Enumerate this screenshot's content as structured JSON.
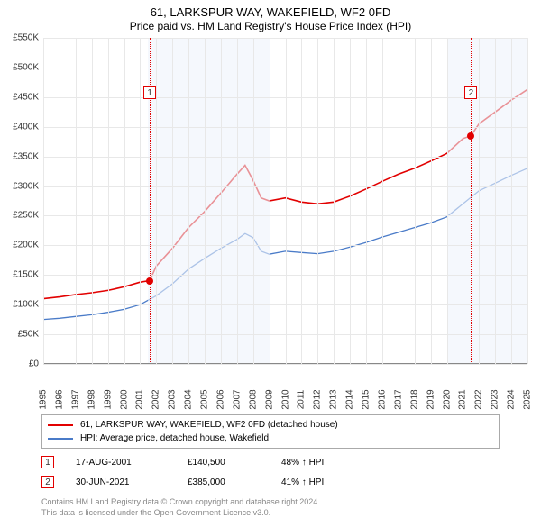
{
  "title": "61, LARKSPUR WAY, WAKEFIELD, WF2 0FD",
  "subtitle": "Price paid vs. HM Land Registry's House Price Index (HPI)",
  "chart": {
    "type": "line",
    "x_years": [
      1995,
      1996,
      1997,
      1998,
      1999,
      2000,
      2001,
      2002,
      2003,
      2004,
      2005,
      2006,
      2007,
      2008,
      2009,
      2010,
      2011,
      2012,
      2013,
      2014,
      2015,
      2016,
      2017,
      2018,
      2019,
      2020,
      2021,
      2022,
      2023,
      2024,
      2025
    ],
    "y_ticks": [
      0,
      50000,
      100000,
      150000,
      200000,
      250000,
      300000,
      350000,
      400000,
      450000,
      500000,
      550000
    ],
    "y_tick_labels": [
      "£0",
      "£50K",
      "£100K",
      "£150K",
      "£200K",
      "£250K",
      "£300K",
      "£350K",
      "£400K",
      "£450K",
      "£500K",
      "£550K"
    ],
    "ylim": [
      0,
      550000
    ],
    "xlim": [
      1995,
      2025
    ],
    "background_color": "#ffffff",
    "grid_color": "#e8e8e8",
    "shade_color": "#eef3fb",
    "shade_ranges": [
      [
        2001.5,
        2009.0
      ],
      [
        2020.0,
        2025.0
      ]
    ],
    "series": [
      {
        "name": "property",
        "label": "61, LARKSPUR WAY, WAKEFIELD, WF2 0FD (detached house)",
        "color": "#e20000",
        "width": 1.6,
        "x": [
          1995,
          1996,
          1997,
          1998,
          1999,
          2000,
          2001,
          2001.6,
          2002,
          2003,
          2004,
          2005,
          2006,
          2007,
          2007.5,
          2008,
          2008.5,
          2009,
          2010,
          2011,
          2012,
          2013,
          2014,
          2015,
          2016,
          2017,
          2018,
          2019,
          2020,
          2021,
          2021.5,
          2022,
          2023,
          2024,
          2025
        ],
        "y": [
          110000,
          113000,
          117000,
          120000,
          124000,
          130000,
          138000,
          140500,
          165000,
          195000,
          230000,
          257000,
          288000,
          320000,
          335000,
          310000,
          280000,
          275000,
          280000,
          273000,
          270000,
          273000,
          283000,
          295000,
          308000,
          320000,
          330000,
          342000,
          355000,
          380000,
          385000,
          405000,
          425000,
          445000,
          463000
        ]
      },
      {
        "name": "hpi",
        "label": "HPI: Average price, detached house, Wakefield",
        "color": "#4a7bc8",
        "width": 1.3,
        "x": [
          1995,
          1996,
          1997,
          1998,
          1999,
          2000,
          2001,
          2002,
          2003,
          2004,
          2005,
          2006,
          2007,
          2007.5,
          2008,
          2008.5,
          2009,
          2010,
          2011,
          2012,
          2013,
          2014,
          2015,
          2016,
          2017,
          2018,
          2019,
          2020,
          2021,
          2022,
          2023,
          2024,
          2025
        ],
        "y": [
          75000,
          77000,
          80000,
          83000,
          87000,
          92000,
          100000,
          115000,
          135000,
          160000,
          178000,
          195000,
          210000,
          220000,
          213000,
          190000,
          185000,
          190000,
          188000,
          186000,
          190000,
          197000,
          205000,
          214000,
          222000,
          230000,
          238000,
          248000,
          270000,
          292000,
          305000,
          318000,
          330000
        ]
      }
    ],
    "markers": [
      {
        "num": "1",
        "x": 2001.6,
        "y": 140500,
        "box_top": 54
      },
      {
        "num": "2",
        "x": 2021.5,
        "y": 385000,
        "box_top": 54
      }
    ]
  },
  "legend": {
    "items": [
      {
        "color": "#e20000",
        "label": "61, LARKSPUR WAY, WAKEFIELD, WF2 0FD (detached house)"
      },
      {
        "color": "#4a7bc8",
        "label": "HPI: Average price, detached house, Wakefield"
      }
    ]
  },
  "annotations": [
    {
      "num": "1",
      "date": "17-AUG-2001",
      "price": "£140,500",
      "delta": "48% ↑ HPI"
    },
    {
      "num": "2",
      "date": "30-JUN-2021",
      "price": "£385,000",
      "delta": "41% ↑ HPI"
    }
  ],
  "footer": {
    "line1": "Contains HM Land Registry data © Crown copyright and database right 2024.",
    "line2": "This data is licensed under the Open Government Licence v3.0."
  }
}
